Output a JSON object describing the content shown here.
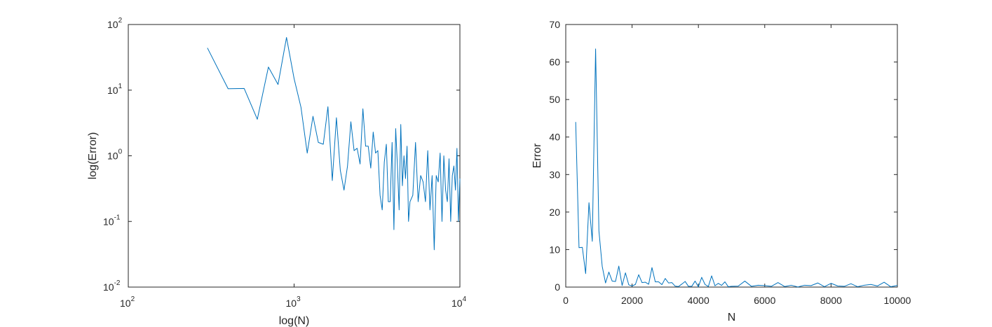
{
  "chart_data": [
    {
      "type": "line",
      "title": "",
      "xlabel": "log(N)",
      "ylabel": "log(Error)",
      "xscale": "log",
      "yscale": "log",
      "xlim": [
        100,
        10000
      ],
      "ylim": [
        0.01,
        100
      ],
      "grid": false,
      "legend": "none",
      "line_color": "#0072BD",
      "xticks": [
        {
          "base": "10",
          "exp": "2"
        },
        {
          "base": "10",
          "exp": "3"
        },
        {
          "base": "10",
          "exp": "4"
        }
      ],
      "yticks": [
        {
          "base": "10",
          "exp": "-2"
        },
        {
          "base": "10",
          "exp": "-1"
        },
        {
          "base": "10",
          "exp": "0"
        },
        {
          "base": "10",
          "exp": "1"
        },
        {
          "base": "10",
          "exp": "2"
        }
      ],
      "series": [
        {
          "x": [
            300,
            400,
            500,
            600,
            700,
            800,
            900,
            1000,
            1100,
            1200,
            1300,
            1400,
            1500,
            1600,
            1700,
            1800,
            1900,
            2000,
            2100,
            2200,
            2300,
            2400,
            2500,
            2600,
            2700,
            2800,
            2900,
            3000,
            3100,
            3200,
            3300,
            3400,
            3500,
            3600,
            3700,
            3800,
            3900,
            4000,
            4100,
            4200,
            4300,
            4400,
            4500,
            4600,
            4700,
            4800,
            4900,
            5000,
            5200,
            5400,
            5600,
            5800,
            6000,
            6200,
            6400,
            6600,
            6800,
            7000,
            7200,
            7400,
            7600,
            7800,
            8000,
            8200,
            8400,
            8600,
            8800,
            9000,
            9200,
            9400,
            9600,
            9800,
            10000
          ],
          "y": [
            44,
            10.5,
            10.6,
            3.6,
            22.5,
            12.2,
            63.5,
            15,
            5.5,
            1.1,
            4,
            1.6,
            1.5,
            5.6,
            0.42,
            3.8,
            0.6,
            0.3,
            0.7,
            3.3,
            1.2,
            1.3,
            0.75,
            5.2,
            1.4,
            1.4,
            0.65,
            2.3,
            1.1,
            1.2,
            0.25,
            0.15,
            0.8,
            1.5,
            0.2,
            0.2,
            1.6,
            0.075,
            2.6,
            0.7,
            0.15,
            3,
            0.35,
            1.0,
            0.45,
            1.4,
            0.1,
            0.2,
            0.25,
            1.6,
            0.2,
            0.5,
            0.4,
            0.2,
            1.2,
            0.15,
            0.5,
            0.037,
            0.5,
            0.4,
            1.1,
            0.1,
            1.0,
            0.3,
            0.2,
            0.9,
            0.1,
            0.5,
            0.7,
            0.3,
            1.3,
            0.1,
            0.45
          ]
        }
      ]
    },
    {
      "type": "line",
      "title": "",
      "xlabel": "N",
      "ylabel": "Error",
      "xscale": "linear",
      "yscale": "linear",
      "xlim": [
        0,
        10000
      ],
      "ylim": [
        0,
        70
      ],
      "grid": false,
      "legend": "none",
      "line_color": "#0072BD",
      "xticks": [
        "0",
        "2000",
        "4000",
        "6000",
        "8000",
        "10000"
      ],
      "yticks": [
        "0",
        "10",
        "20",
        "30",
        "40",
        "50",
        "60",
        "70"
      ],
      "series": [
        {
          "x": [
            300,
            400,
            500,
            600,
            700,
            800,
            900,
            1000,
            1100,
            1200,
            1300,
            1400,
            1500,
            1600,
            1700,
            1800,
            1900,
            2000,
            2100,
            2200,
            2300,
            2400,
            2500,
            2600,
            2700,
            2800,
            2900,
            3000,
            3100,
            3200,
            3300,
            3400,
            3500,
            3600,
            3700,
            3800,
            3900,
            4000,
            4100,
            4200,
            4300,
            4400,
            4500,
            4600,
            4700,
            4800,
            4900,
            5000,
            5200,
            5400,
            5600,
            5800,
            6000,
            6200,
            6400,
            6600,
            6800,
            7000,
            7200,
            7400,
            7600,
            7800,
            8000,
            8200,
            8400,
            8600,
            8800,
            9000,
            9200,
            9400,
            9600,
            9800,
            10000
          ],
          "y": [
            44,
            10.5,
            10.6,
            3.6,
            22.5,
            12.2,
            63.5,
            15,
            5.5,
            1.1,
            4,
            1.6,
            1.5,
            5.6,
            0.42,
            3.8,
            0.6,
            0.3,
            0.7,
            3.3,
            1.2,
            1.3,
            0.75,
            5.2,
            1.4,
            1.4,
            0.65,
            2.3,
            1.1,
            1.2,
            0.25,
            0.15,
            0.8,
            1.5,
            0.2,
            0.2,
            1.6,
            0.075,
            2.6,
            0.7,
            0.15,
            3,
            0.35,
            1.0,
            0.45,
            1.4,
            0.1,
            0.2,
            0.25,
            1.6,
            0.2,
            0.5,
            0.4,
            0.2,
            1.2,
            0.15,
            0.5,
            0.037,
            0.5,
            0.4,
            1.1,
            0.1,
            1.0,
            0.3,
            0.2,
            0.9,
            0.1,
            0.5,
            0.7,
            0.3,
            1.3,
            0.1,
            0.45
          ]
        }
      ]
    }
  ]
}
